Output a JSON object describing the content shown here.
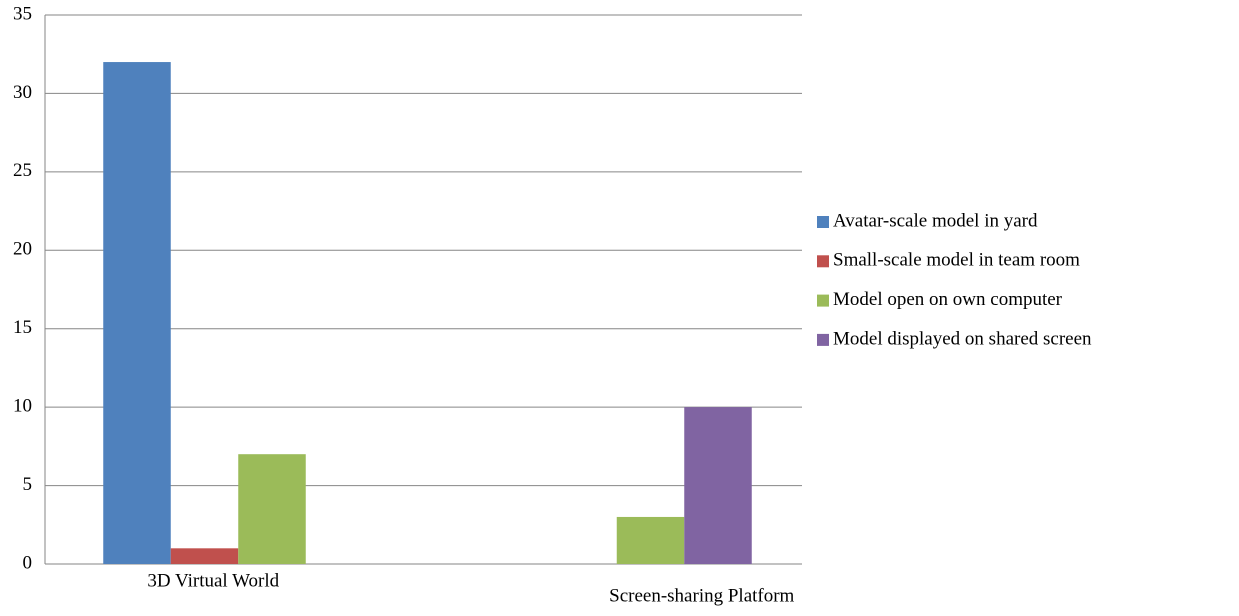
{
  "chart_data": {
    "type": "bar",
    "categories": [
      "3D Virtual World",
      "Screen-sharing Platform"
    ],
    "series": [
      {
        "name": "Avatar-scale model in yard",
        "color": "#4f81bd",
        "values": [
          32,
          0
        ]
      },
      {
        "name": "Small-scale model in team room",
        "color": "#c0504d",
        "values": [
          1,
          0
        ]
      },
      {
        "name": "Model open on own computer",
        "color": "#9bbb59",
        "values": [
          7,
          3
        ]
      },
      {
        "name": "Model displayed on shared screen",
        "color": "#8064a2",
        "values": [
          0,
          10
        ]
      }
    ],
    "ylim": [
      0,
      35
    ],
    "yticks": [
      0,
      5,
      10,
      15,
      20,
      25,
      30,
      35
    ],
    "grid": true,
    "legend": "right"
  }
}
